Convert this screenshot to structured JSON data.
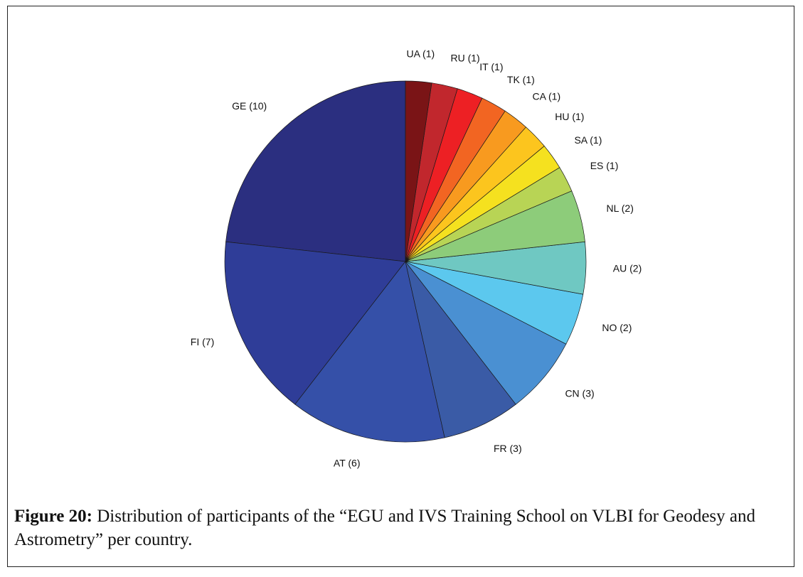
{
  "chart_data": {
    "type": "pie",
    "values": [
      10,
      7,
      6,
      3,
      3,
      2,
      2,
      2,
      1,
      1,
      1,
      1,
      1,
      1,
      1,
      1
    ],
    "value_labels": [
      "GE (10)",
      "FI (7)",
      "AT (6)",
      "FR (3)",
      "CN (3)",
      "NO (2)",
      "AU (2)",
      "NL (2)",
      "ES (1)",
      "SA (1)",
      "HU (1)",
      "CA (1)",
      "TK (1)",
      "IT (1)",
      "RU (1)",
      "UA (1)"
    ],
    "colors": [
      "#2b2f80",
      "#2f3d98",
      "#3550a8",
      "#3a5ba6",
      "#4a90d2",
      "#5cc8ee",
      "#6fc8c2",
      "#8dcc7a",
      "#b8d455",
      "#f5e11f",
      "#fcc51e",
      "#f89a1f",
      "#f26522",
      "#ed2024",
      "#c1272d",
      "#7a1416"
    ],
    "caption": {
      "label": "Figure 20:",
      "text": "Distribution of participants of the “EGU and IVS Training School on VLBI for Geodesy and Astrometry” per country."
    }
  }
}
